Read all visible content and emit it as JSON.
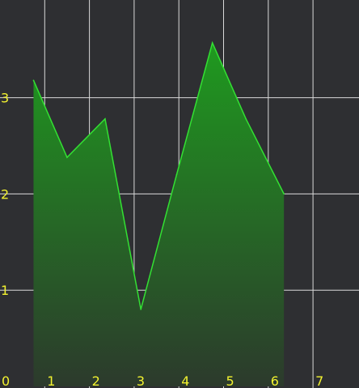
{
  "chart_data": {
    "type": "area",
    "x": [
      0.75,
      1.5,
      2.35,
      3.15,
      3.95,
      4.75,
      5.5,
      6.35
    ],
    "y": [
      3.18,
      2.38,
      2.78,
      0.8,
      2.2,
      3.57,
      2.78,
      2.0
    ],
    "xlim": [
      0,
      8
    ],
    "ylim": [
      0,
      4
    ],
    "x_ticks": [
      "0",
      "1",
      "2",
      "3",
      "4",
      "5",
      "6",
      "7"
    ],
    "y_ticks": [
      "1",
      "2",
      "3"
    ],
    "grid": true,
    "colors": {
      "background": "#2e2f32",
      "grid": "#d9d9d9",
      "line": "#33e033",
      "fill_top": "#1f9a1f",
      "fill_bottom": "#2c3a2c",
      "tick_label": "#f2f230"
    }
  }
}
